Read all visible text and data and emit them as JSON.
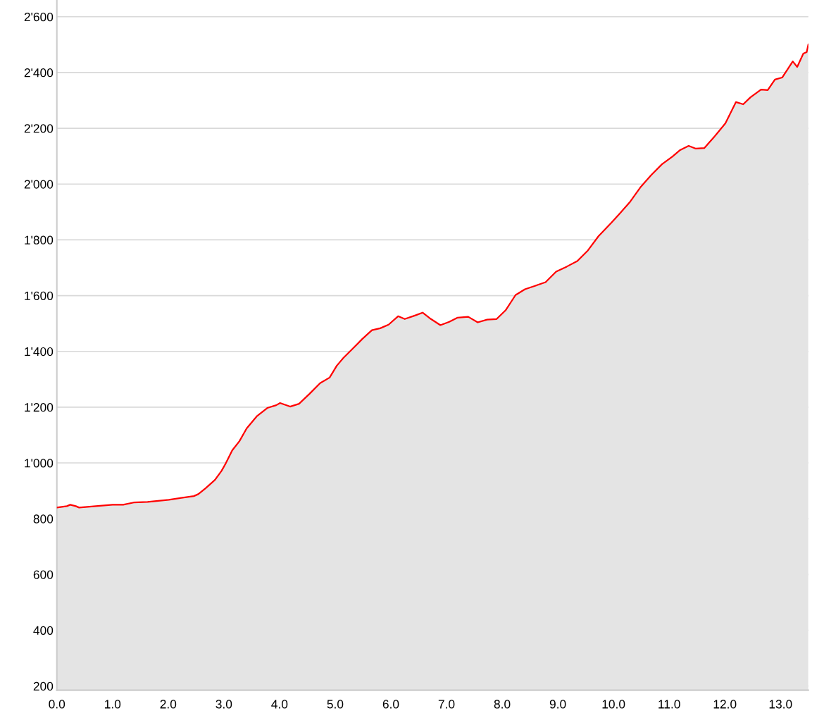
{
  "chart_data": {
    "type": "area",
    "xlim": [
      0,
      13.5
    ],
    "ylim": [
      185,
      2660
    ],
    "xticks": [
      {
        "value": 0,
        "label": "0.0"
      },
      {
        "value": 1,
        "label": "1.0"
      },
      {
        "value": 2,
        "label": "2.0"
      },
      {
        "value": 3,
        "label": "3.0"
      },
      {
        "value": 4,
        "label": "4.0"
      },
      {
        "value": 5,
        "label": "5.0"
      },
      {
        "value": 6,
        "label": "6.0"
      },
      {
        "value": 7,
        "label": "7.0"
      },
      {
        "value": 8,
        "label": "8.0"
      },
      {
        "value": 9,
        "label": "9.0"
      },
      {
        "value": 10,
        "label": "10.0"
      },
      {
        "value": 11,
        "label": "11.0"
      },
      {
        "value": 12,
        "label": "12.0"
      },
      {
        "value": 13,
        "label": "13.0"
      }
    ],
    "yticks": [
      200,
      400,
      600,
      800,
      {
        "value": 1000,
        "label": "1'000"
      },
      {
        "value": 1200,
        "label": "1'200"
      },
      {
        "value": 1400,
        "label": "1'400"
      },
      {
        "value": 1600,
        "label": "1'600"
      },
      {
        "value": 1800,
        "label": "1'800"
      },
      {
        "value": 2000,
        "label": "2'000"
      },
      {
        "value": 2200,
        "label": "2'200"
      },
      {
        "value": 2400,
        "label": "2'400"
      },
      {
        "value": 2600,
        "label": "2'600"
      }
    ],
    "grid": "y",
    "legend": false,
    "series": [
      {
        "color": "#ff0000",
        "x": [
          0,
          0.18,
          0.24,
          0.34,
          0.4,
          1.0,
          1.19,
          1.38,
          1.63,
          2.01,
          2.46,
          2.54,
          2.67,
          2.84,
          2.96,
          3.03,
          3.15,
          3.28,
          3.41,
          3.59,
          3.78,
          3.94,
          4.01,
          4.19,
          4.35,
          4.54,
          4.73,
          4.9,
          5.03,
          5.15,
          5.3,
          5.49,
          5.66,
          5.81,
          5.96,
          6.13,
          6.25,
          6.44,
          6.57,
          6.72,
          6.89,
          7.05,
          7.2,
          7.39,
          7.56,
          7.73,
          7.9,
          8.06,
          8.24,
          8.41,
          8.59,
          8.78,
          8.97,
          9.16,
          9.35,
          9.54,
          9.73,
          9.96,
          10.11,
          10.3,
          10.49,
          10.68,
          10.87,
          11.06,
          11.19,
          11.35,
          11.48,
          11.63,
          11.82,
          12.01,
          12.2,
          12.33,
          12.46,
          12.65,
          12.77,
          12.9,
          13.03,
          13.22,
          13.3,
          13.41,
          13.47,
          13.5
        ],
        "values": [
          840,
          845,
          850,
          845,
          840,
          850,
          850,
          858,
          860,
          868,
          881,
          888,
          909,
          939,
          972,
          997,
          1045,
          1078,
          1124,
          1167,
          1197,
          1207,
          1215,
          1202,
          1212,
          1248,
          1286,
          1306,
          1349,
          1377,
          1407,
          1445,
          1476,
          1483,
          1496,
          1526,
          1516,
          1529,
          1539,
          1516,
          1494,
          1506,
          1521,
          1524,
          1504,
          1514,
          1516,
          1547,
          1602,
          1623,
          1635,
          1648,
          1686,
          1704,
          1724,
          1762,
          1813,
          1861,
          1894,
          1937,
          1990,
          2033,
          2071,
          2099,
          2121,
          2137,
          2127,
          2129,
          2172,
          2218,
          2294,
          2286,
          2311,
          2339,
          2337,
          2375,
          2382,
          2440,
          2420,
          2468,
          2473,
          2501
        ]
      }
    ]
  }
}
